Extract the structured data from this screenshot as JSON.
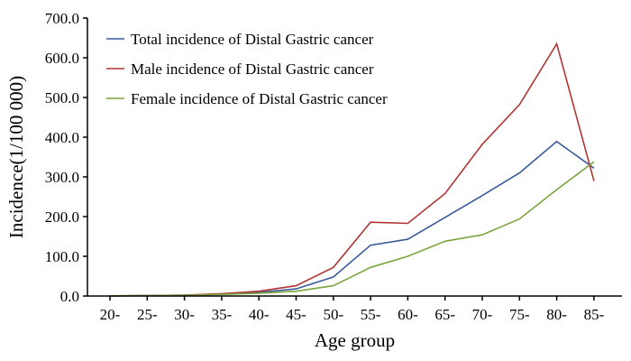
{
  "chart_data": {
    "type": "line",
    "title": "",
    "xlabel": "Age group",
    "ylabel": "Incidence(1/100 000)",
    "categories": [
      "20-",
      "25-",
      "30-",
      "35-",
      "40-",
      "45-",
      "50-",
      "55-",
      "60-",
      "65-",
      "70-",
      "75-",
      "80-",
      "85-"
    ],
    "ylim": [
      0,
      700
    ],
    "yticks": [
      "0.0",
      "100.0",
      "200.0",
      "300.0",
      "400.0",
      "500.0",
      "600.0",
      "700.0"
    ],
    "grid": false,
    "legend_position": "top-left",
    "series": [
      {
        "name": "Total incidence of Distal Gastric cancer",
        "color": "#3b5a9a",
        "values": [
          0.5,
          1,
          2,
          5,
          9,
          18,
          48,
          128,
          143,
          198,
          253,
          310,
          389,
          322
        ]
      },
      {
        "name": "Male incidence of Distal Gastric cancer",
        "color": "#b03434",
        "values": [
          0.5,
          1,
          2,
          6,
          12,
          26,
          72,
          186,
          183,
          258,
          382,
          482,
          635,
          290
        ]
      },
      {
        "name": "Female incidence of Distal Gastric cancer",
        "color": "#7aa63c",
        "values": [
          0.5,
          1,
          1.5,
          4,
          7,
          12,
          26,
          72,
          100,
          138,
          154,
          194,
          268,
          338
        ]
      }
    ]
  }
}
